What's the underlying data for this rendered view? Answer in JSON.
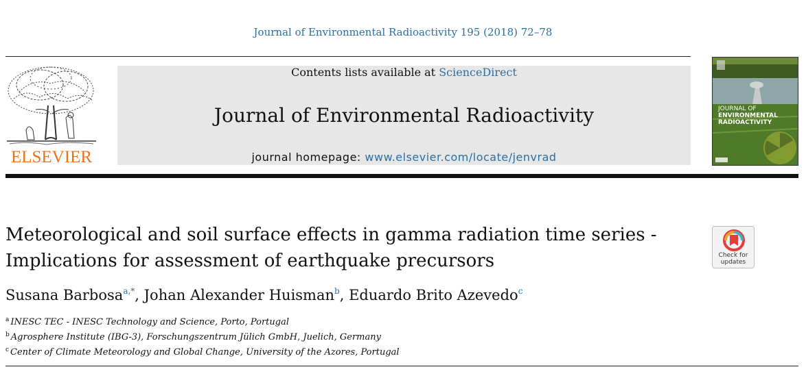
{
  "header": {
    "citation": "Journal of Environmental Radioactivity 195 (2018) 72–78",
    "publisher_logo_text": "ELSEVIER",
    "contents_prefix": "Contents lists available at ",
    "contents_link": "ScienceDirect",
    "journal_title": "Journal of Environmental Radioactivity",
    "homepage_prefix": "journal homepage: ",
    "homepage_link": "www.elsevier.com/locate/jenvrad",
    "cover_title_line1": "JOURNAL OF",
    "cover_title_line2": "ENVIRONMENTAL",
    "cover_title_line3": "RADIOACTIVITY"
  },
  "article": {
    "title_line1": "Meteorological and soil surface effects in gamma radiation time series -",
    "title_line2": "Implications for assessment of earthquake precursors",
    "check_updates_line1": "Check for",
    "check_updates_line2": "updates",
    "authors": [
      {
        "name": "Susana Barbosa",
        "sup": "a,*"
      },
      {
        "name": "Johan Alexander Huisman",
        "sup": "b"
      },
      {
        "name": "Eduardo Brito Azevedo",
        "sup": "c"
      }
    ],
    "author_separator": ", ",
    "affiliations": [
      {
        "mark": "a",
        "text": "INESC TEC - INESC Technology and Science, Porto, Portugal"
      },
      {
        "mark": "b",
        "text": "Agrosphere Institute (IBG-3), Forschungszentrum Jülich GmbH, Juelich, Germany"
      },
      {
        "mark": "c",
        "text": "Center of Climate Meteorology and Global Change, University of the Azores, Portugal"
      }
    ]
  },
  "colors": {
    "link_blue": "#2a6fa5",
    "elsevier_orange": "#e8731c",
    "banner_gray": "#e7e7e7"
  }
}
